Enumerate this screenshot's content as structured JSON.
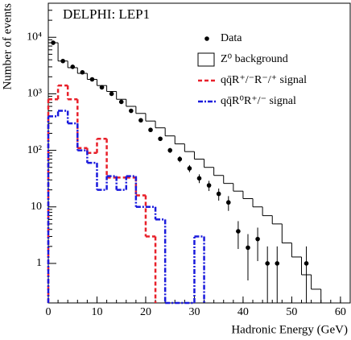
{
  "chart_data": {
    "type": "histogram",
    "title": "DELPHI: LEP1",
    "x_label": "Hadronic Energy (GeV)",
    "y_label": "Number of events",
    "xlim": [
      0,
      62
    ],
    "ylim": [
      0.2,
      40000
    ],
    "log_y": true,
    "xticks": [
      0,
      10,
      20,
      30,
      40,
      50,
      60
    ],
    "yticks": [
      1,
      10,
      {
        "value": 100,
        "label": "10²"
      },
      {
        "value": 1000,
        "label": "10³"
      },
      {
        "value": 10000,
        "label": "10⁴"
      }
    ],
    "legend": "upper right",
    "series": [
      {
        "name": "Data",
        "type": "points",
        "color": "#000000",
        "x": [
          1,
          3,
          5,
          7,
          9,
          11,
          13,
          15,
          17,
          19,
          21,
          23,
          25,
          27,
          29,
          31,
          33,
          35,
          37,
          39,
          41,
          43,
          45,
          47,
          53
        ],
        "values": [
          8000,
          3800,
          3000,
          2400,
          1800,
          1300,
          1000,
          720,
          500,
          340,
          230,
          160,
          100,
          70,
          48,
          32,
          24,
          17,
          12,
          3.7,
          1.9,
          2.7,
          1,
          1,
          1
        ],
        "errors": [
          89,
          62,
          55,
          49,
          42,
          36,
          32,
          27,
          22,
          18,
          15,
          13,
          10,
          8.4,
          6.9,
          5.7,
          4.9,
          4.1,
          3.5,
          1.9,
          1.4,
          1.6,
          1,
          1,
          1
        ]
      },
      {
        "name": "Z⁰ background",
        "type": "step",
        "color": "#000000",
        "linestyle": "solid",
        "bins": [
          0,
          2,
          4,
          6,
          8,
          10,
          12,
          14,
          16,
          18,
          20,
          22,
          24,
          26,
          28,
          30,
          32,
          34,
          36,
          38,
          40,
          42,
          44,
          46,
          48,
          50,
          52,
          54,
          56
        ],
        "values": [
          8000,
          3800,
          2900,
          2300,
          1800,
          1400,
          1100,
          800,
          600,
          450,
          330,
          250,
          180,
          130,
          95,
          70,
          50,
          36,
          26,
          19,
          14,
          10,
          7,
          5,
          2.3,
          1.3,
          0.63,
          0.35
        ]
      },
      {
        "name": "qq̄R⁺/⁻R⁻/⁺ signal",
        "type": "step",
        "color": "#e8202a",
        "linestyle": "dashed",
        "bins": [
          0,
          2,
          4,
          6,
          8,
          10,
          12,
          14,
          16,
          18,
          20,
          22
        ],
        "values": [
          800,
          1400,
          800,
          110,
          90,
          160,
          33,
          33,
          33,
          16,
          3
        ]
      },
      {
        "name": "qq̄R⁰R⁺/⁻ signal",
        "type": "step",
        "color": "#1a1adc",
        "linestyle": "dashdot",
        "bins": [
          0,
          2,
          4,
          6,
          8,
          10,
          12,
          14,
          16,
          18,
          20,
          22,
          24,
          26,
          28,
          30,
          32
        ],
        "values": [
          400,
          500,
          300,
          100,
          60,
          20,
          35,
          20,
          35,
          10,
          10,
          6,
          0,
          0,
          0,
          3
        ]
      }
    ]
  }
}
